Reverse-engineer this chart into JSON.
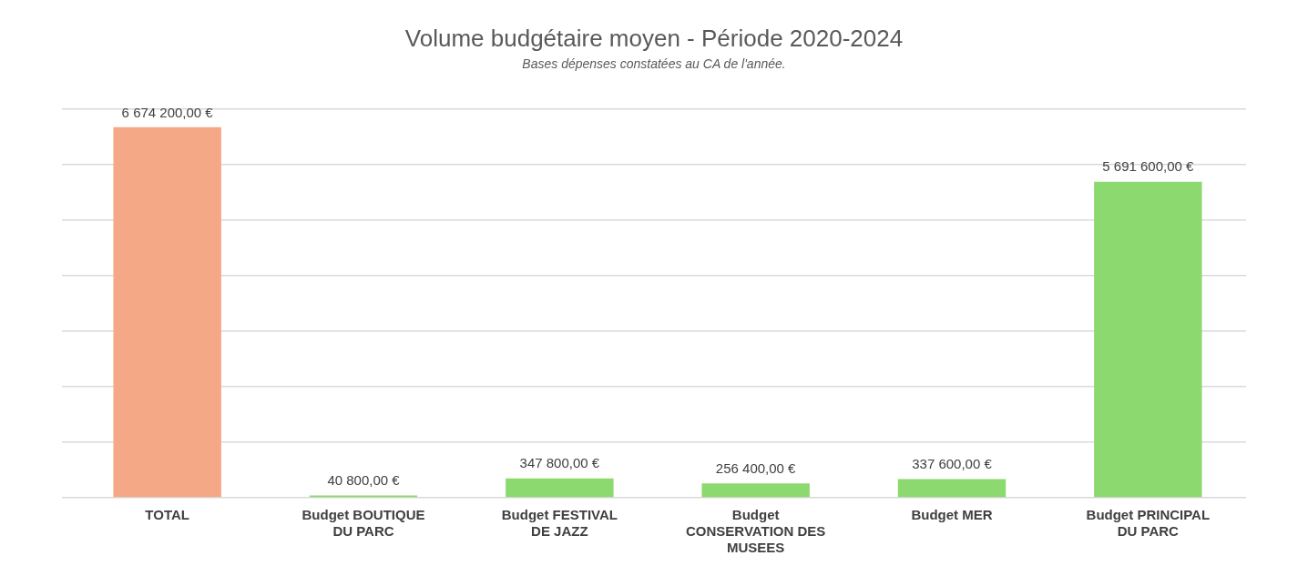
{
  "chart_data": {
    "type": "bar",
    "title": "Volume budgétaire moyen - Période 2020-2024",
    "subtitle": "Bases dépenses constatées au CA de l'année.",
    "categories": [
      "TOTAL",
      "Budget BOUTIQUE DU PARC",
      "Budget FESTIVAL DE JAZZ",
      "Budget CONSERVATION DES MUSEES",
      "Budget MER",
      "Budget PRINCIPAL DU PARC"
    ],
    "values": [
      6674200,
      40800,
      347800,
      256400,
      337600,
      5691600
    ],
    "colors": [
      "#f4a886",
      "#8cd96f",
      "#8cd96f",
      "#8cd96f",
      "#8cd96f",
      "#8cd96f"
    ],
    "value_labels": [
      "6 674 200,00 €",
      "40 800,00 €",
      "347 800,00 €",
      "256 400,00 €",
      "337 600,00 €",
      "5 691 600,00 €"
    ],
    "ylim": [
      0,
      7000000
    ],
    "yticks": [
      {
        "value": 0,
        "label": null
      },
      {
        "value": 1000000,
        "label": null
      },
      {
        "value": 2000000,
        "label": null
      },
      {
        "value": 3000000,
        "label": null
      },
      {
        "value": 4000000,
        "label": null
      },
      {
        "value": 5000000,
        "label": null
      },
      {
        "value": 6000000,
        "label": null
      },
      {
        "value": 7000000,
        "label": null
      }
    ],
    "grid": "y",
    "tick_labels": "x",
    "legend": false
  }
}
